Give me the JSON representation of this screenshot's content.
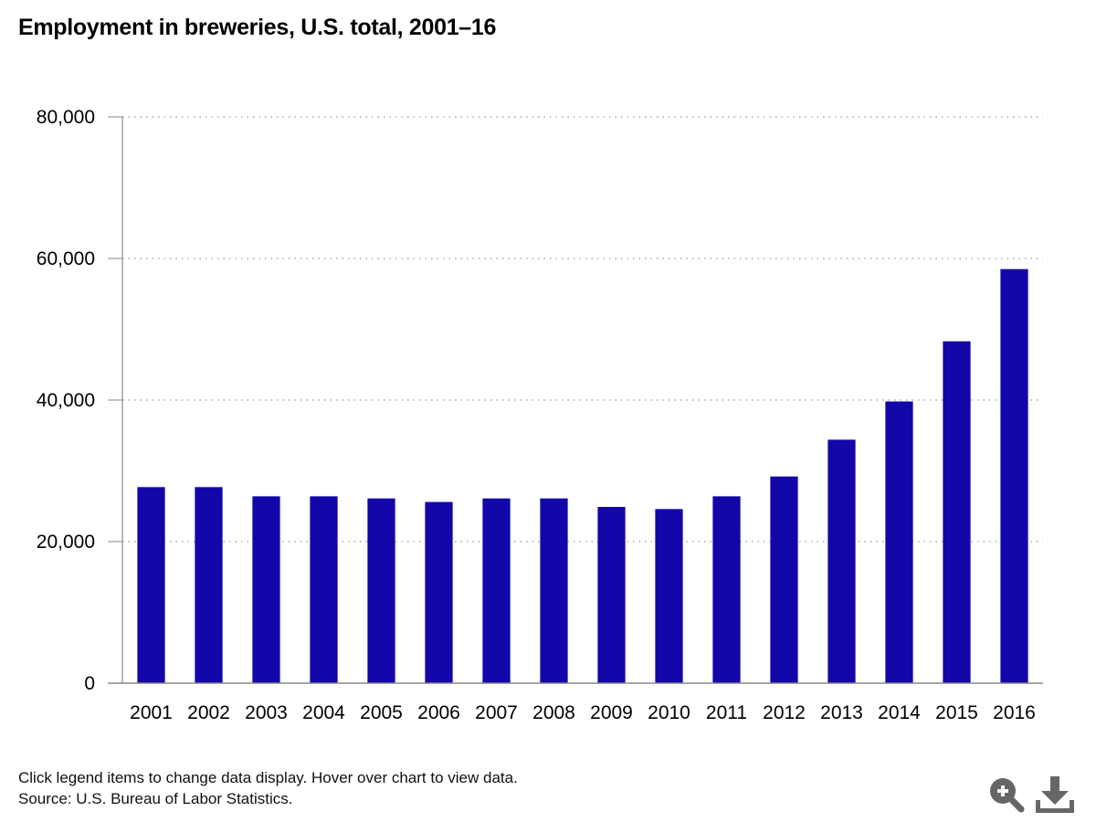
{
  "chart_data": {
    "type": "bar",
    "title": "Employment in breweries, U.S. total, 2001–16",
    "xlabel": "",
    "ylabel": "",
    "categories": [
      "2001",
      "2002",
      "2003",
      "2004",
      "2005",
      "2006",
      "2007",
      "2008",
      "2009",
      "2010",
      "2011",
      "2012",
      "2013",
      "2014",
      "2015",
      "2016"
    ],
    "series": [
      {
        "name": "Employment in breweries",
        "values": [
          27700,
          27700,
          26400,
          26400,
          26100,
          25600,
          26100,
          26100,
          24900,
          24600,
          26400,
          29200,
          34400,
          39800,
          48300,
          58500
        ]
      }
    ],
    "ylim": [
      0,
      80000
    ],
    "yticks": [
      0,
      20000,
      40000,
      60000,
      80000
    ],
    "ytick_labels": [
      "0",
      "20,000",
      "40,000",
      "60,000",
      "80,000"
    ],
    "grid": true,
    "bar_color": "#1206a8"
  },
  "footer": {
    "instructions": "Click legend items to change data display. Hover over chart to view data.",
    "source": "Source: U.S. Bureau of Labor Statistics."
  },
  "icons": {
    "zoom": "zoom-in-icon",
    "download": "download-icon"
  }
}
